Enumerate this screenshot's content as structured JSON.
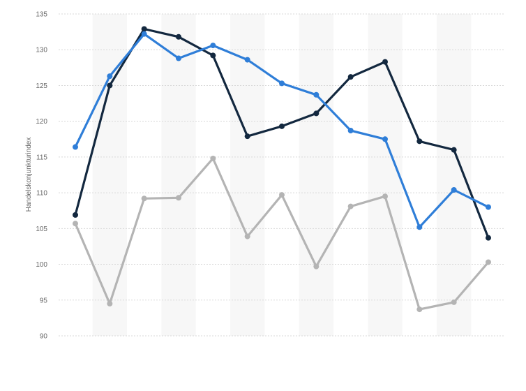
{
  "chart_data": {
    "type": "line",
    "title": "",
    "xlabel": "",
    "ylabel": "Handelskonjunkturindex",
    "ylim": [
      90,
      135
    ],
    "yticks": [
      90,
      95,
      100,
      105,
      110,
      115,
      120,
      125,
      130,
      135
    ],
    "grid": true,
    "legend": "none",
    "x": [
      1,
      2,
      3,
      4,
      5,
      6,
      7,
      8,
      9,
      10,
      11,
      12,
      13
    ],
    "series": [
      {
        "color": "#2f7ed8",
        "values": [
          116.4,
          126.3,
          132.2,
          128.8,
          130.6,
          128.6,
          125.3,
          123.7,
          118.7,
          117.5,
          105.2,
          110.4,
          108.0
        ]
      },
      {
        "color": "#13283f",
        "values": [
          106.9,
          125.0,
          132.9,
          131.8,
          129.2,
          117.9,
          119.3,
          121.1,
          126.2,
          128.3,
          117.2,
          116.0,
          103.7
        ]
      },
      {
        "color": "#b4b4b4",
        "values": [
          105.7,
          94.5,
          109.2,
          109.3,
          114.8,
          103.9,
          109.7,
          99.7,
          108.1,
          109.5,
          93.7,
          94.7,
          100.3
        ]
      }
    ]
  }
}
